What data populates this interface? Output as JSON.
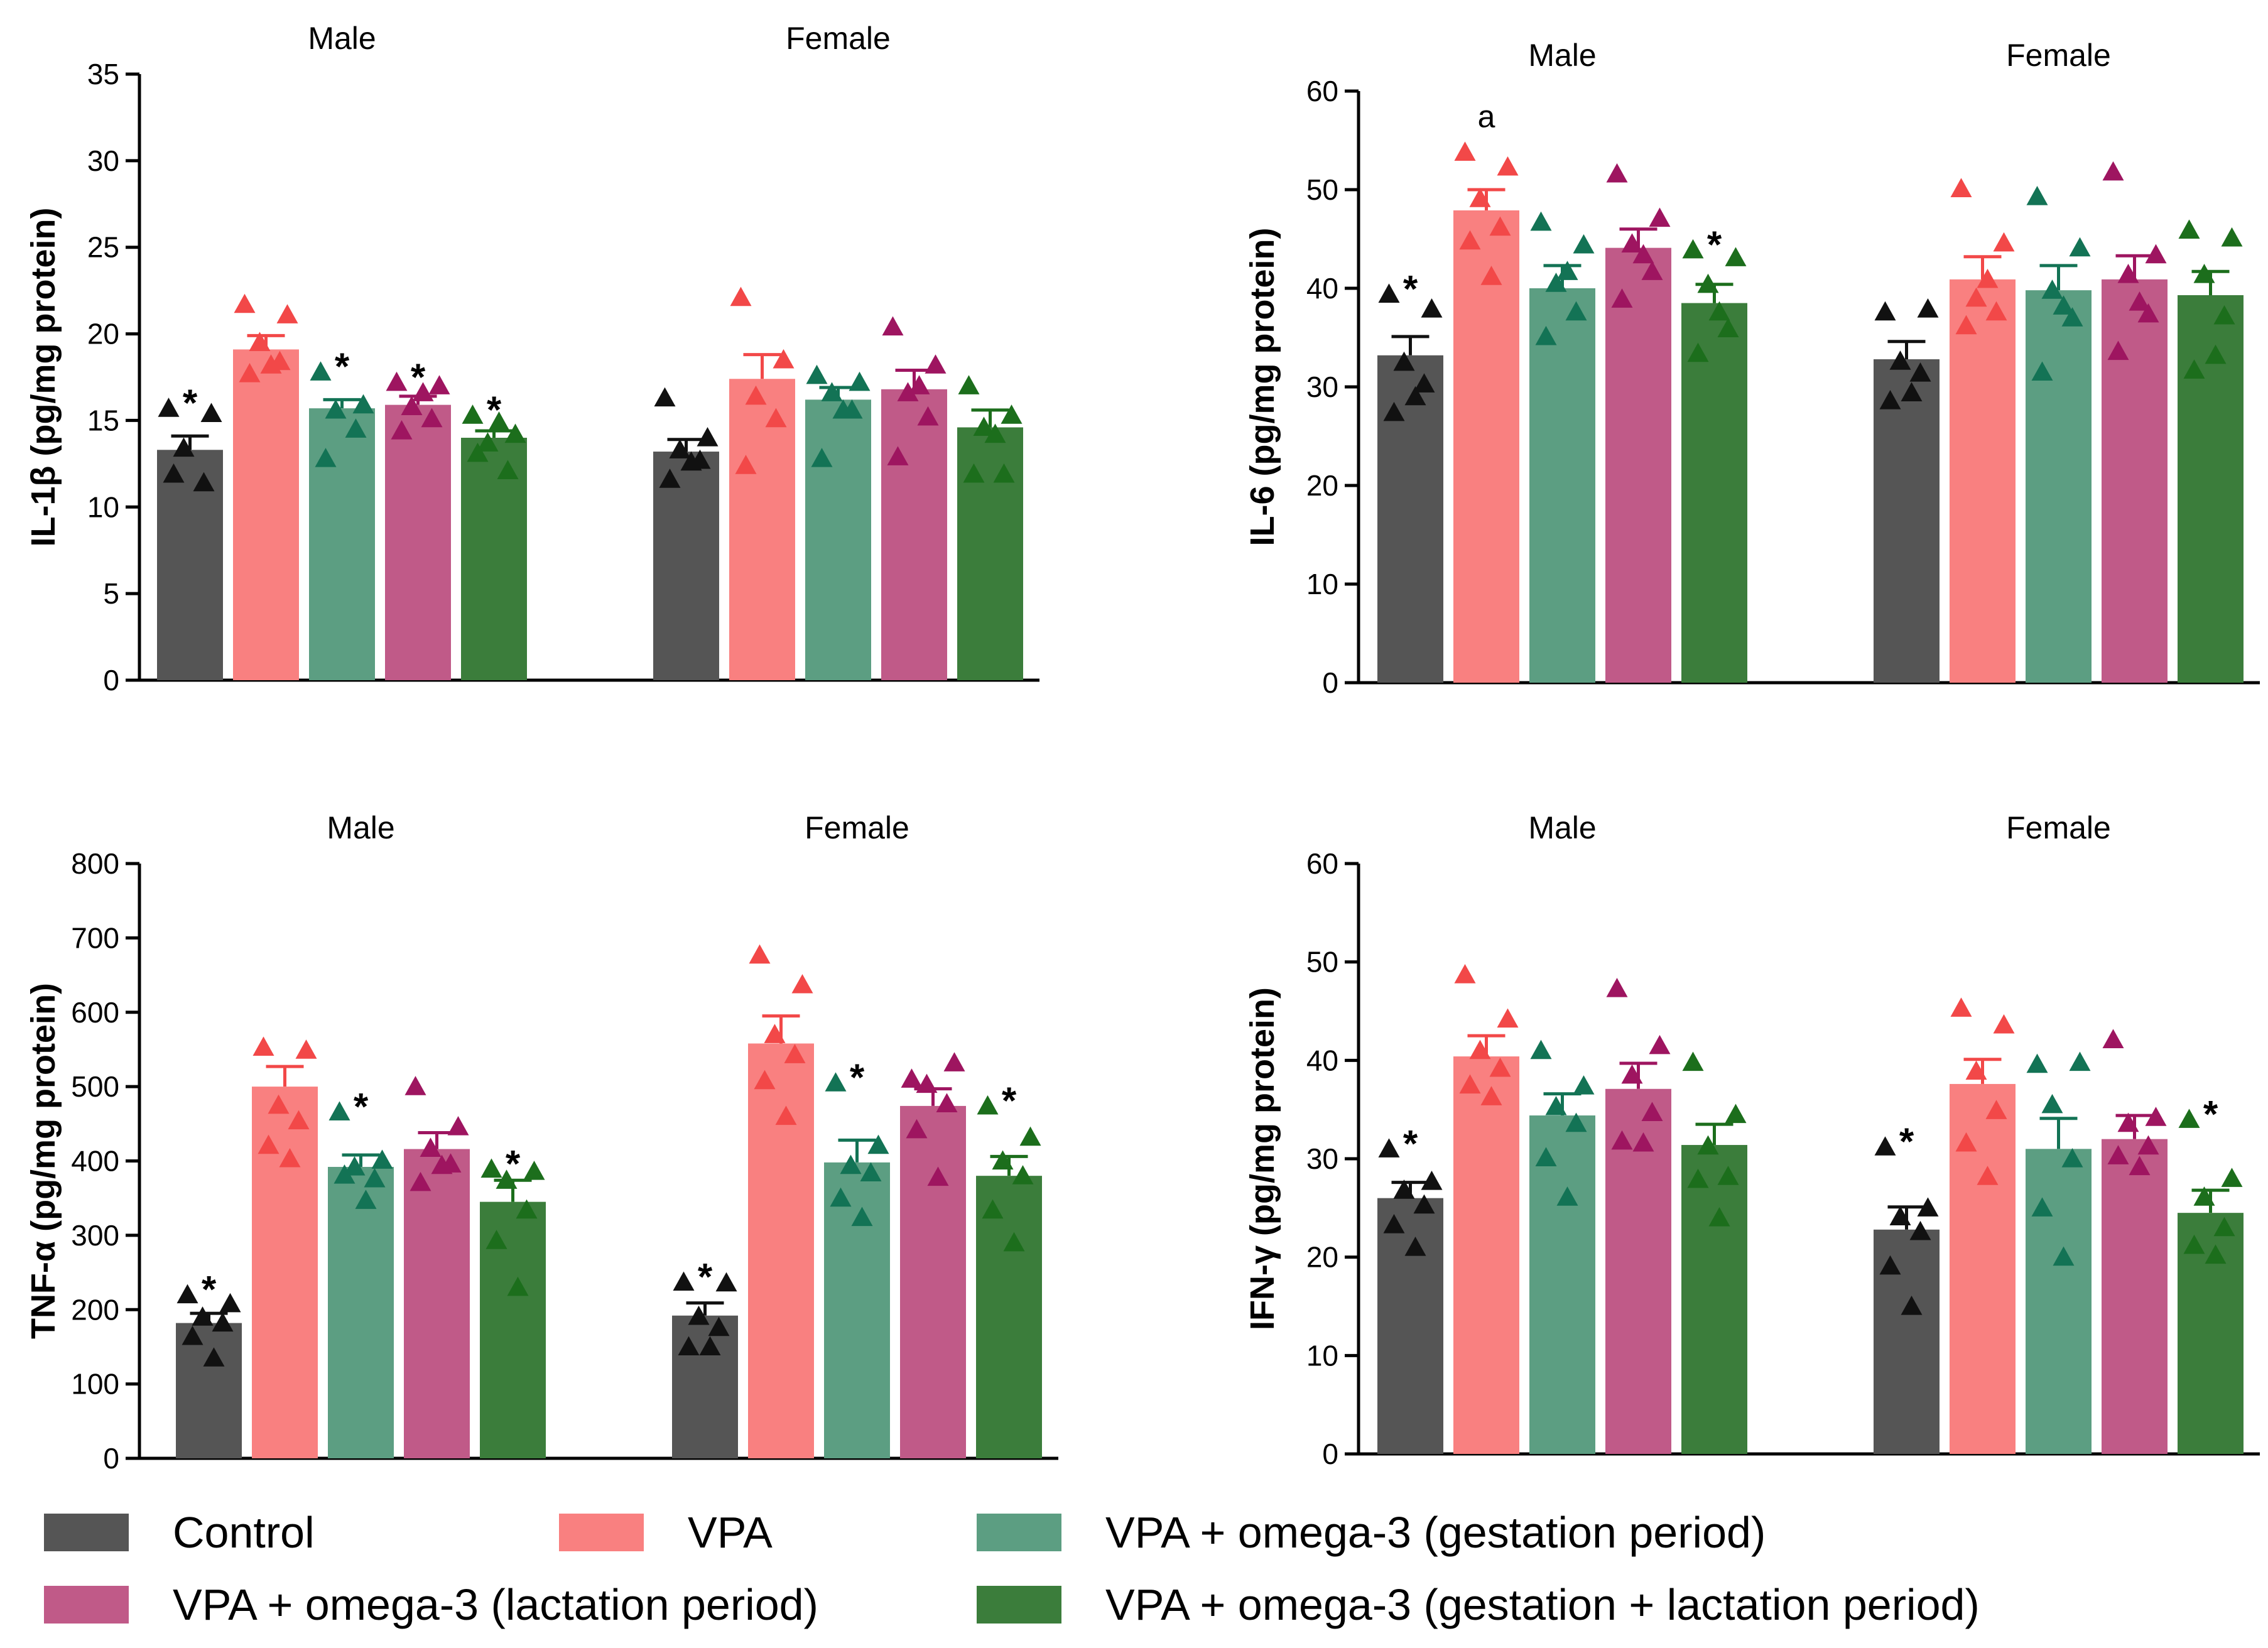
{
  "colors": {
    "Control": "#555555",
    "VPA": "#f98080",
    "VPA + omega-3 (gestation period)": "#5c9e82",
    "VPA + omega-3 (lactation period)": "#c05a88",
    "VPA + omega-3 (gestation + lactation period)": "#3b7d3b"
  },
  "marker_colors": {
    "Control": "#111111",
    "VPA": "#f24848",
    "VPA + omega-3 (gestation period)": "#137355",
    "VPA + omega-3 (lactation period)": "#9e1560",
    "VPA + omega-3 (gestation + lactation period)": "#1c6e1c"
  },
  "legend": {
    "items": [
      "Control",
      "VPA",
      "VPA + omega-3 (gestation period)",
      "VPA + omega-3 (lactation period)",
      "VPA + omega-3 (gestation + lactation period)"
    ]
  },
  "chart_data": [
    {
      "type": "bar",
      "title": "",
      "ylabel": "IL-1β (pg/mg protein)",
      "ylim": [
        0,
        35
      ],
      "yticks": [
        0,
        5,
        10,
        15,
        20,
        25,
        30,
        35
      ],
      "groups": [
        "Male",
        "Female"
      ],
      "series_names": [
        "Control",
        "VPA",
        "VPA + omega-3 (gestation period)",
        "VPA + omega-3 (lactation period)",
        "VPA + omega-3 (gestation + lactation period)"
      ],
      "means": [
        [
          13.3,
          19.1,
          15.7,
          15.9,
          14.0
        ],
        [
          13.2,
          17.4,
          16.2,
          16.8,
          14.6
        ]
      ],
      "sem": [
        [
          0.8,
          0.8,
          0.5,
          0.5,
          0.4
        ],
        [
          0.7,
          1.4,
          0.7,
          1.1,
          1.0
        ]
      ],
      "points": [
        [
          [
            15.7,
            15.4,
            13.4,
            11.4,
            11.9
          ],
          [
            21.7,
            21.1,
            19.5,
            18.4,
            17.7,
            18.2
          ],
          [
            17.8,
            15.9,
            15.6,
            14.5,
            12.8
          ],
          [
            17.2,
            17.0,
            15.8,
            15.1,
            14.4,
            16.6
          ],
          [
            15.3,
            14.2,
            13.7,
            12.1,
            13.1,
            14.9
          ]
        ],
        [
          [
            16.3,
            14.0,
            13.3,
            12.7,
            11.6,
            12.6
          ],
          [
            22.1,
            18.5,
            16.4,
            15.1,
            12.4
          ],
          [
            17.6,
            17.2,
            16.6,
            15.6,
            12.8,
            15.6
          ],
          [
            20.4,
            18.2,
            16.6,
            15.2,
            12.9,
            17.0
          ],
          [
            17.0,
            15.3,
            14.6,
            11.9,
            11.9,
            14.2
          ]
        ]
      ],
      "significance": [
        [
          "*",
          "",
          "*",
          "*",
          "*"
        ],
        [
          "",
          "",
          "",
          "",
          ""
        ]
      ]
    },
    {
      "type": "bar",
      "title": "",
      "ylabel": "IL-6 (pg/mg protein)",
      "ylim": [
        0,
        60
      ],
      "yticks": [
        0,
        10,
        20,
        30,
        40,
        50,
        60
      ],
      "groups": [
        "Male",
        "Female"
      ],
      "series_names": [
        "Control",
        "VPA",
        "VPA + omega-3 (gestation period)",
        "VPA + omega-3 (lactation period)",
        "VPA + omega-3 (gestation + lactation period)"
      ],
      "means": [
        [
          33.2,
          47.9,
          40.0,
          44.1,
          38.5
        ],
        [
          32.8,
          40.9,
          39.8,
          40.9,
          39.3
        ]
      ],
      "sem": [
        [
          1.9,
          2.1,
          2.3,
          1.9,
          1.9
        ],
        [
          1.8,
          2.3,
          2.5,
          2.4,
          2.4
        ]
      ],
      "points": [
        [
          [
            39.4,
            37.9,
            32.5,
            30.3,
            27.4,
            29.0
          ],
          [
            53.8,
            52.3,
            49.1,
            46.2,
            44.8,
            41.2
          ],
          [
            46.7,
            44.4,
            40.5,
            37.6,
            35.1,
            41.7
          ],
          [
            51.6,
            47.1,
            44.5,
            41.7,
            38.9,
            43.4
          ],
          [
            43.9,
            43.1,
            40.4,
            35.9,
            33.4,
            37.6
          ]
        ],
        [
          [
            37.6,
            37.9,
            32.6,
            31.4,
            28.6,
            29.4
          ],
          [
            50.1,
            44.6,
            39.0,
            37.6,
            36.2,
            40.9
          ],
          [
            49.3,
            44.1,
            39.8,
            37.0,
            31.5,
            38.2
          ],
          [
            51.8,
            43.4,
            41.4,
            37.4,
            33.6,
            38.6
          ],
          [
            45.9,
            45.1,
            41.4,
            37.2,
            31.7,
            33.2
          ]
        ]
      ],
      "significance": [
        [
          "*",
          "a",
          "",
          "",
          "*"
        ],
        [
          "",
          "",
          "",
          "",
          ""
        ]
      ]
    },
    {
      "type": "bar",
      "title": "",
      "ylabel": "TNF-α (pg/mg protein)",
      "ylim": [
        0,
        800
      ],
      "yticks": [
        0,
        100,
        200,
        300,
        400,
        500,
        600,
        700,
        800
      ],
      "groups": [
        "Male",
        "Female"
      ],
      "series_names": [
        "Control",
        "VPA",
        "VPA + omega-3 (gestation period)",
        "VPA + omega-3 (lactation period)",
        "VPA + omega-3 (gestation + lactation period)"
      ],
      "means": [
        [
          182,
          500,
          392,
          416,
          345
        ],
        [
          192,
          558,
          398,
          474,
          380
        ]
      ],
      "sem": [
        [
          13,
          27,
          16,
          22,
          29
        ],
        [
          17,
          37,
          30,
          23,
          26
        ]
      ],
      "points": [
        [
          [
            220,
            208,
            190,
            182,
            164,
            135
          ],
          [
            553,
            549,
            475,
            454,
            421,
            403
          ],
          [
            466,
            401,
            392,
            376,
            381,
            347
          ],
          [
            500,
            446,
            417,
            396,
            371,
            394
          ],
          [
            389,
            386,
            374,
            334,
            293,
            230
          ]
        ],
        [
          [
            237,
            236,
            191,
            176,
            150,
            150
          ],
          [
            677,
            637,
            570,
            543,
            508,
            460
          ],
          [
            505,
            421,
            394,
            384,
            350,
            324
          ],
          [
            510,
            532,
            503,
            477,
            442,
            378
          ],
          [
            474,
            432,
            400,
            380,
            334,
            290
          ]
        ]
      ],
      "significance": [
        [
          "*",
          "",
          "*",
          "",
          "*"
        ],
        [
          "*",
          "",
          "*",
          "",
          "*"
        ]
      ]
    },
    {
      "type": "bar",
      "title": "",
      "ylabel": "IFN-γ (pg/mg protein)",
      "ylim": [
        0,
        60
      ],
      "yticks": [
        0,
        10,
        20,
        30,
        40,
        50,
        60
      ],
      "groups": [
        "Male",
        "Female"
      ],
      "series_names": [
        "Control",
        "VPA",
        "VPA + omega-3 (gestation period)",
        "VPA + omega-3 (lactation period)",
        "VPA + omega-3 (gestation + lactation period)"
      ],
      "means": [
        [
          26.0,
          40.4,
          34.4,
          37.1,
          31.4
        ],
        [
          22.8,
          37.6,
          31.0,
          32.0,
          24.5
        ]
      ],
      "sem": [
        [
          1.6,
          2.1,
          2.2,
          2.6,
          2.1
        ],
        [
          2.3,
          2.5,
          3.1,
          2.4,
          2.3
        ]
      ],
      "points": [
        [
          [
            31.0,
            27.7,
            26.8,
            25.3,
            23.3,
            21.0
          ],
          [
            48.7,
            44.2,
            41.0,
            39.2,
            37.5,
            36.3
          ],
          [
            41.0,
            37.4,
            35.3,
            33.6,
            30.1,
            26.1
          ],
          [
            47.3,
            41.5,
            38.5,
            34.7,
            31.8,
            31.6
          ],
          [
            39.8,
            34.5,
            31.3,
            28.2,
            27.9,
            24.0
          ]
        ],
        [
          [
            31.2,
            25.0,
            24.1,
            22.6,
            19.1,
            15.0
          ],
          [
            45.3,
            43.6,
            38.9,
            34.9,
            31.6,
            28.2
          ],
          [
            39.6,
            39.8,
            35.5,
            30.0,
            25.0,
            20.0
          ],
          [
            42.1,
            34.2,
            33.6,
            31.3,
            30.3,
            29.2
          ],
          [
            34.0,
            28.0,
            26.1,
            23.0,
            21.2,
            20.2
          ]
        ]
      ],
      "significance": [
        [
          "*",
          "",
          "",
          "",
          ""
        ],
        [
          "*",
          "",
          "",
          "",
          "*"
        ]
      ]
    }
  ]
}
